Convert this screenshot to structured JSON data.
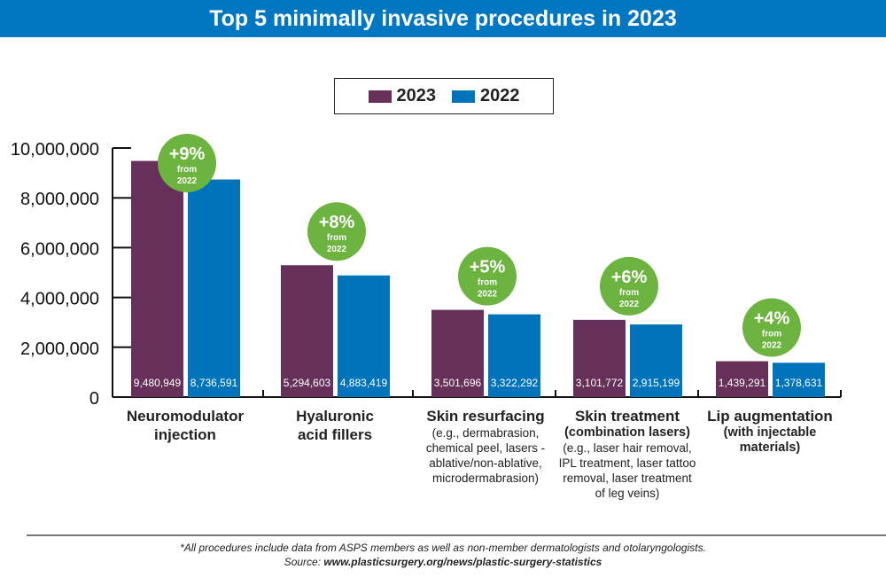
{
  "chart_data": {
    "type": "bar",
    "title": "Top 5 minimally invasive procedures in 2023",
    "categories": [
      {
        "label": [
          "Neuromodulator",
          "injection"
        ],
        "details_bold": [],
        "details": []
      },
      {
        "label": [
          "Hyaluronic",
          "acid fillers"
        ],
        "details_bold": [],
        "details": []
      },
      {
        "label": [
          "Skin resurfacing"
        ],
        "details_bold": [],
        "details": [
          "(e.g., dermabrasion,",
          "chemical peel, lasers -",
          "ablative/non-ablative,",
          "microdermabrasion)"
        ]
      },
      {
        "label": [
          "Skin treatment"
        ],
        "details_bold": [
          "(combination lasers)"
        ],
        "details": [
          "(e.g., laser hair removal,",
          "IPL treatment, laser tattoo",
          "removal, laser treatment",
          "of leg veins)"
        ]
      },
      {
        "label": [
          "Lip augmentation"
        ],
        "details_bold": [
          "(with injectable",
          "materials)"
        ],
        "details": []
      }
    ],
    "series": [
      {
        "name": "2023",
        "color": "#67305a",
        "values": [
          9480949,
          5294603,
          3501696,
          3101772,
          1439291
        ],
        "value_labels": [
          "9,480,949",
          "5,294,603",
          "3,501,696",
          "3,101,772",
          "1,439,291"
        ]
      },
      {
        "name": "2022",
        "color": "#0074bb",
        "values": [
          8736591,
          4883419,
          3322292,
          2915199,
          1378631
        ],
        "value_labels": [
          "8,736,591",
          "4,883,419",
          "3,322,292",
          "2,915,199",
          "1,378,631"
        ]
      }
    ],
    "change_badges": [
      {
        "pct": "+9%",
        "from": "from",
        "year": "2022"
      },
      {
        "pct": "+8%",
        "from": "from",
        "year": "2022"
      },
      {
        "pct": "+5%",
        "from": "from",
        "year": "2022"
      },
      {
        "pct": "+6%",
        "from": "from",
        "year": "2022"
      },
      {
        "pct": "+4%",
        "from": "from",
        "year": "2022"
      }
    ],
    "badge_color": "#6db33f",
    "ylim": [
      0,
      10000000
    ],
    "yticks": [
      "0",
      "2,000,000",
      "4,000,000",
      "6,000,000",
      "8,000,000",
      "10,000,000"
    ],
    "ytick_values": [
      0,
      2000000,
      4000000,
      6000000,
      8000000,
      10000000
    ],
    "legend_position": "top-center",
    "grid": false
  },
  "header_color": "#0077c0",
  "footnote": "*All procedures include data from ASPS members as well as non-member dermatologists and otolaryngologists.",
  "source_label": "Source: ",
  "source_url": "www.plasticsurgery.org/news/plastic-surgery-statistics"
}
